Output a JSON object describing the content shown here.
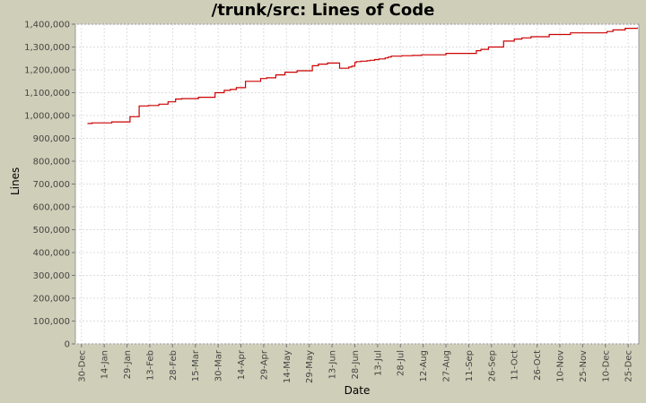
{
  "chart_data": {
    "type": "line",
    "title": "/trunk/src: Lines of Code",
    "xlabel": "Date",
    "ylabel": "Lines",
    "grid": true,
    "ylim": [
      0,
      1400000
    ],
    "y_ticks": [
      0,
      100000,
      200000,
      300000,
      400000,
      500000,
      600000,
      700000,
      800000,
      900000,
      1000000,
      1100000,
      1200000,
      1300000,
      1400000
    ],
    "y_tick_labels": [
      "0",
      "100,000",
      "200,000",
      "300,000",
      "400,000",
      "500,000",
      "600,000",
      "700,000",
      "800,000",
      "900,000",
      "1,000,000",
      "1,100,000",
      "1,200,000",
      "1,300,000",
      "1,400,000"
    ],
    "x_ticks": [
      0,
      15,
      30,
      45,
      60,
      75,
      90,
      105,
      120,
      135,
      150,
      165,
      180,
      195,
      210,
      225,
      240,
      255,
      270,
      285,
      300,
      315,
      330,
      345,
      360
    ],
    "x_tick_labels": [
      "30-Dec",
      "14-Jan",
      "29-Jan",
      "13-Feb",
      "28-Feb",
      "15-Mar",
      "30-Mar",
      "14-Apr",
      "29-Apr",
      "14-May",
      "29-May",
      "13-Jun",
      "28-Jun",
      "13-Jul",
      "28-Jul",
      "12-Aug",
      "27-Aug",
      "11-Sep",
      "26-Sep",
      "11-Oct",
      "26-Oct",
      "10-Nov",
      "25-Nov",
      "10-Dec",
      "25-Dec"
    ],
    "xlim": [
      -4,
      367
    ],
    "series": [
      {
        "name": "",
        "color": "#cc0000",
        "x": [
          4,
          7,
          20,
          32,
          38,
          38,
          44,
          51,
          57,
          62,
          64,
          66,
          77,
          88,
          94,
          98,
          102,
          108,
          118,
          122,
          128,
          134,
          142,
          152,
          156,
          162,
          170,
          176,
          178,
          180,
          181,
          184,
          188,
          190,
          193,
          196,
          200,
          202,
          204,
          211,
          218,
          224,
          240,
          260,
          263,
          268,
          278,
          285,
          290,
          296,
          308,
          322,
          346,
          350,
          358,
          366
        ],
        "y": [
          965000,
          968000,
          972000,
          995000,
          1015000,
          1042000,
          1044000,
          1050000,
          1060000,
          1072000,
          1072000,
          1074000,
          1080000,
          1100000,
          1110000,
          1114000,
          1122000,
          1150000,
          1162000,
          1165000,
          1178000,
          1190000,
          1196000,
          1218000,
          1225000,
          1230000,
          1207000,
          1212000,
          1216000,
          1232000,
          1236000,
          1238000,
          1240000,
          1242000,
          1245000,
          1248000,
          1252000,
          1256000,
          1260000,
          1262000,
          1263000,
          1266000,
          1272000,
          1284000,
          1290000,
          1300000,
          1326000,
          1335000,
          1340000,
          1345000,
          1355000,
          1362000,
          1368000,
          1375000,
          1382000,
          1385000
        ]
      }
    ]
  }
}
